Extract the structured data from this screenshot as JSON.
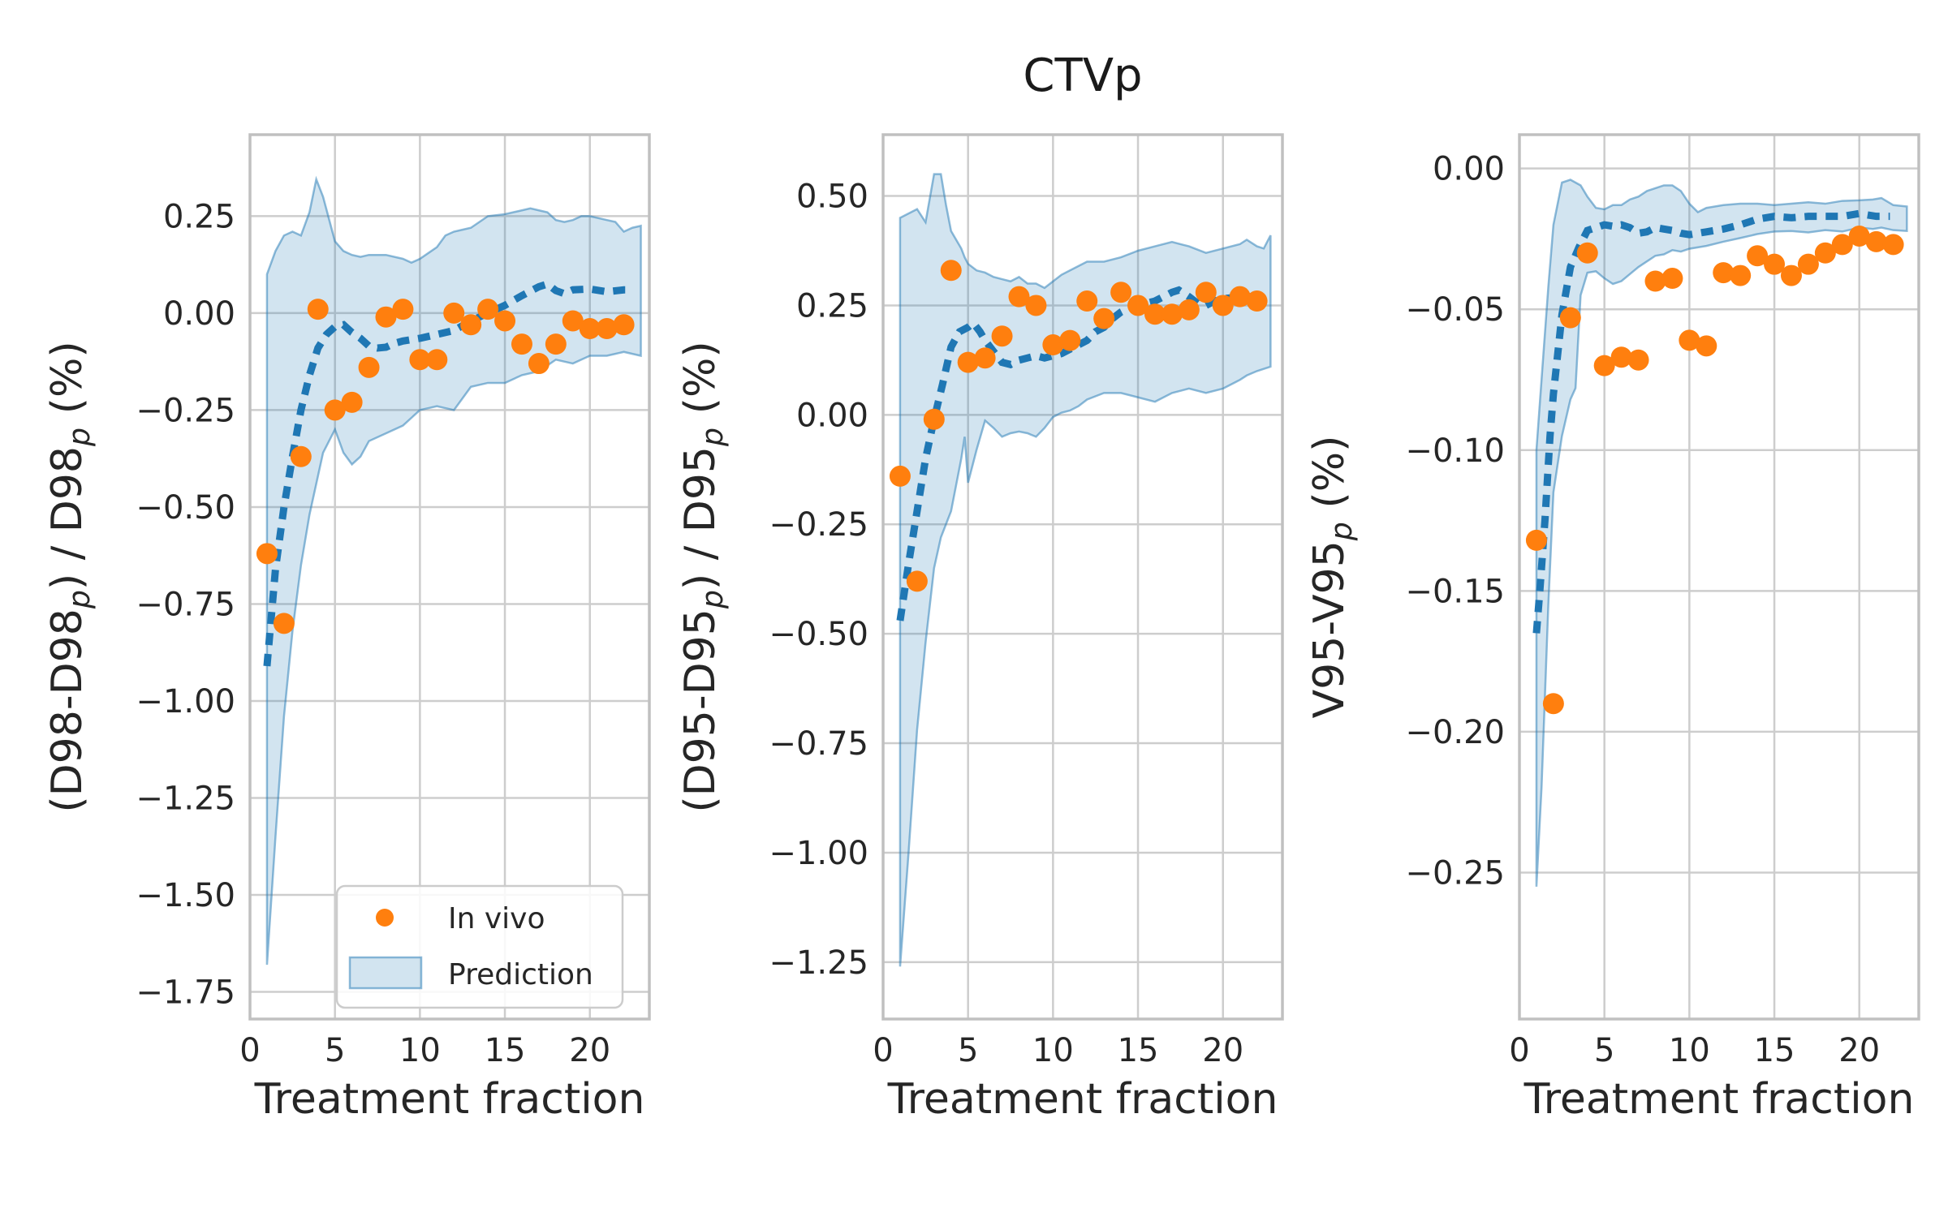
{
  "figure": {
    "title": "CTVp",
    "xlabel": "Treatment fraction",
    "legend": {
      "items": [
        {
          "label": "In vivo",
          "marker": "dot-icon"
        },
        {
          "label": "Prediction",
          "marker": "band-patch-icon"
        }
      ]
    },
    "colors": {
      "scatter_orange": "#ff7f0e",
      "prediction_blue": "#1f77b4",
      "band_fill": "rgba(31,119,180,0.20)",
      "band_edge": "rgba(31,119,180,0.50)",
      "grid_gray": "#cdcdcd",
      "spine_gray": "#c0c0c0",
      "text_color": "#262626"
    }
  },
  "chart_data": [
    {
      "type": "scatter",
      "name": "subplot-d98",
      "title": "",
      "xlabel": "Treatment fraction",
      "ylabel": "(D98-D98_p) / D98_p (%)",
      "xlim": [
        0,
        23.5
      ],
      "ylim": [
        -1.82,
        0.46
      ],
      "grid": true,
      "xticks": [
        {
          "v": 0,
          "label": "0"
        },
        {
          "v": 5,
          "label": "5"
        },
        {
          "v": 10,
          "label": "10"
        },
        {
          "v": 15,
          "label": "15"
        },
        {
          "v": 20,
          "label": "20"
        }
      ],
      "yticks": [
        {
          "v": 0.25,
          "label": "0.25"
        },
        {
          "v": 0,
          "label": "0.00"
        },
        {
          "v": -0.25,
          "label": "−0.25"
        },
        {
          "v": -0.5,
          "label": "−0.50"
        },
        {
          "v": -0.75,
          "label": "−0.75"
        },
        {
          "v": -1,
          "label": "−1.00"
        },
        {
          "v": -1.25,
          "label": "−1.25"
        },
        {
          "v": -1.5,
          "label": "−1.50"
        },
        {
          "v": -1.75,
          "label": "−1.75"
        }
      ],
      "scatter": {
        "name": "In vivo",
        "x": [
          1,
          2,
          3,
          4,
          5,
          6,
          7,
          8,
          9,
          10,
          11,
          12,
          13,
          14,
          15,
          16,
          17,
          18,
          19,
          20,
          21,
          22
        ],
        "y": [
          -0.62,
          -0.8,
          -0.37,
          0.01,
          -0.25,
          -0.23,
          -0.14,
          -0.01,
          0.01,
          -0.12,
          -0.12,
          0.0,
          -0.03,
          0.01,
          -0.02,
          -0.08,
          -0.13,
          -0.08,
          -0.02,
          -0.04,
          -0.04,
          -0.03
        ]
      },
      "mean": {
        "name": "Prediction mean",
        "x": [
          1,
          1.5,
          2,
          2.5,
          3,
          3.5,
          4,
          4.5,
          5,
          5.5,
          6,
          6.5,
          7,
          7.5,
          8,
          8.5,
          9,
          10,
          11,
          12,
          13,
          14,
          15,
          16,
          17,
          17.5,
          18,
          18.5,
          19,
          20,
          21,
          22,
          22.3
        ],
        "y": [
          -0.91,
          -0.66,
          -0.5,
          -0.37,
          -0.25,
          -0.16,
          -0.09,
          -0.055,
          -0.035,
          -0.03,
          -0.05,
          -0.065,
          -0.085,
          -0.09,
          -0.088,
          -0.078,
          -0.072,
          -0.065,
          -0.055,
          -0.045,
          -0.02,
          0.0,
          0.02,
          0.045,
          0.068,
          0.075,
          0.058,
          0.05,
          0.06,
          0.062,
          0.055,
          0.06,
          0.06
        ]
      },
      "band": {
        "name": "Prediction",
        "x": [
          1,
          1.5,
          2,
          2.5,
          3,
          3.5,
          3.9,
          4.3,
          5,
          5.5,
          6,
          6.5,
          7,
          8,
          9,
          9.5,
          10,
          10.5,
          11,
          11.5,
          12,
          12.5,
          13,
          14,
          15,
          16,
          16.5,
          17,
          17.5,
          18,
          18.5,
          19,
          19.5,
          20,
          20.5,
          21,
          21.5,
          22,
          22.5,
          23
        ],
        "upper": [
          0.1,
          0.16,
          0.2,
          0.21,
          0.2,
          0.26,
          0.345,
          0.3,
          0.185,
          0.16,
          0.15,
          0.145,
          0.15,
          0.15,
          0.14,
          0.13,
          0.14,
          0.155,
          0.17,
          0.2,
          0.21,
          0.215,
          0.22,
          0.25,
          0.255,
          0.265,
          0.27,
          0.265,
          0.26,
          0.24,
          0.235,
          0.24,
          0.25,
          0.25,
          0.245,
          0.24,
          0.235,
          0.21,
          0.22,
          0.225
        ],
        "lower": [
          -1.68,
          -1.35,
          -1.04,
          -0.82,
          -0.65,
          -0.52,
          -0.44,
          -0.36,
          -0.3,
          -0.36,
          -0.39,
          -0.37,
          -0.33,
          -0.31,
          -0.29,
          -0.27,
          -0.25,
          -0.245,
          -0.24,
          -0.245,
          -0.25,
          -0.22,
          -0.19,
          -0.18,
          -0.18,
          -0.16,
          -0.155,
          -0.15,
          -0.135,
          -0.12,
          -0.125,
          -0.13,
          -0.12,
          -0.11,
          -0.11,
          -0.11,
          -0.105,
          -0.1,
          -0.105,
          -0.11
        ]
      }
    },
    {
      "type": "scatter",
      "name": "subplot-d95",
      "title": "CTVp",
      "xlabel": "Treatment fraction",
      "ylabel": "(D95-D95_p) / D95_p (%)",
      "xlim": [
        0,
        23.5
      ],
      "ylim": [
        -1.38,
        0.64
      ],
      "grid": true,
      "xticks": [
        {
          "v": 0,
          "label": "0"
        },
        {
          "v": 5,
          "label": "5"
        },
        {
          "v": 10,
          "label": "10"
        },
        {
          "v": 15,
          "label": "15"
        },
        {
          "v": 20,
          "label": "20"
        }
      ],
      "yticks": [
        {
          "v": 0.5,
          "label": "0.50"
        },
        {
          "v": 0.25,
          "label": "0.25"
        },
        {
          "v": 0,
          "label": "0.00"
        },
        {
          "v": -0.25,
          "label": "−0.25"
        },
        {
          "v": -0.5,
          "label": "−0.50"
        },
        {
          "v": -0.75,
          "label": "−0.75"
        },
        {
          "v": -1,
          "label": "−1.00"
        },
        {
          "v": -1.25,
          "label": "−1.25"
        }
      ],
      "scatter": {
        "name": "In vivo",
        "x": [
          1,
          2,
          3,
          4,
          5,
          6,
          7,
          8,
          9,
          10,
          11,
          12,
          13,
          14,
          15,
          16,
          17,
          18,
          19,
          20,
          21,
          22
        ],
        "y": [
          -0.14,
          -0.38,
          -0.01,
          0.33,
          0.12,
          0.13,
          0.18,
          0.27,
          0.25,
          0.16,
          0.17,
          0.26,
          0.22,
          0.28,
          0.25,
          0.23,
          0.23,
          0.24,
          0.28,
          0.25,
          0.27,
          0.26
        ]
      },
      "mean": {
        "name": "Prediction mean",
        "x": [
          1,
          1.5,
          2,
          2.5,
          3,
          3.5,
          4,
          4.5,
          5,
          5.3,
          5.7,
          6,
          6.5,
          7,
          7.5,
          8,
          8.5,
          9,
          9.5,
          10,
          10.5,
          11,
          11.5,
          12,
          12.5,
          13,
          13.5,
          14,
          14.5,
          15,
          16,
          16.5,
          17,
          17.4,
          18,
          18.5,
          19,
          19.5,
          20,
          21,
          22,
          22.3
        ],
        "y": [
          -0.47,
          -0.34,
          -0.22,
          -0.1,
          -0.01,
          0.07,
          0.155,
          0.19,
          0.2,
          0.21,
          0.19,
          0.17,
          0.145,
          0.12,
          0.115,
          0.125,
          0.13,
          0.135,
          0.13,
          0.135,
          0.14,
          0.15,
          0.16,
          0.17,
          0.19,
          0.2,
          0.22,
          0.235,
          0.245,
          0.25,
          0.26,
          0.27,
          0.28,
          0.285,
          0.27,
          0.255,
          0.25,
          0.26,
          0.265,
          0.27,
          0.27,
          0.272
        ]
      },
      "band": {
        "name": "Prediction",
        "x": [
          1,
          1.5,
          2,
          2.5,
          3,
          3.4,
          3.7,
          4,
          4.3,
          4.6,
          4.8,
          5,
          5.5,
          6,
          6.5,
          7,
          7.5,
          8,
          8.5,
          9,
          9.5,
          10,
          10.5,
          11,
          11.5,
          12,
          13,
          14,
          15,
          16,
          17,
          17.5,
          18,
          19,
          20,
          21,
          21.4,
          22,
          22.4,
          22.8
        ],
        "upper": [
          0.45,
          0.46,
          0.47,
          0.44,
          0.55,
          0.55,
          0.48,
          0.42,
          0.4,
          0.38,
          0.36,
          0.345,
          0.33,
          0.325,
          0.315,
          0.31,
          0.305,
          0.315,
          0.3,
          0.3,
          0.29,
          0.305,
          0.32,
          0.33,
          0.34,
          0.35,
          0.35,
          0.36,
          0.375,
          0.385,
          0.395,
          0.39,
          0.385,
          0.37,
          0.38,
          0.39,
          0.4,
          0.385,
          0.38,
          0.41
        ],
        "lower": [
          -1.26,
          -1.0,
          -0.72,
          -0.52,
          -0.35,
          -0.28,
          -0.25,
          -0.22,
          -0.16,
          -0.1,
          -0.05,
          -0.155,
          -0.08,
          -0.013,
          -0.03,
          -0.05,
          -0.042,
          -0.038,
          -0.042,
          -0.05,
          -0.03,
          -0.005,
          0.005,
          0.01,
          0.02,
          0.035,
          0.05,
          0.05,
          0.04,
          0.03,
          0.05,
          0.055,
          0.06,
          0.05,
          0.06,
          0.08,
          0.09,
          0.1,
          0.105,
          0.11
        ]
      }
    },
    {
      "type": "scatter",
      "name": "subplot-v95",
      "title": "",
      "xlabel": "Treatment fraction",
      "ylabel": "V95-V95_p (%)",
      "xlim": [
        0,
        23.5
      ],
      "ylim": [
        -0.302,
        0.012
      ],
      "grid": true,
      "xticks": [
        {
          "v": 0,
          "label": "0"
        },
        {
          "v": 5,
          "label": "5"
        },
        {
          "v": 10,
          "label": "10"
        },
        {
          "v": 15,
          "label": "15"
        },
        {
          "v": 20,
          "label": "20"
        }
      ],
      "yticks": [
        {
          "v": 0,
          "label": "0.00"
        },
        {
          "v": -0.05,
          "label": "−0.05"
        },
        {
          "v": -0.1,
          "label": "−0.10"
        },
        {
          "v": -0.15,
          "label": "−0.15"
        },
        {
          "v": -0.2,
          "label": "−0.20"
        },
        {
          "v": -0.25,
          "label": "−0.25"
        }
      ],
      "scatter": {
        "name": "In vivo",
        "x": [
          1,
          2,
          3,
          4,
          5,
          6,
          7,
          8,
          9,
          10,
          11,
          12,
          13,
          14,
          15,
          16,
          17,
          18,
          19,
          20,
          21,
          22
        ],
        "y": [
          -0.132,
          -0.19,
          -0.053,
          -0.03,
          -0.07,
          -0.067,
          -0.068,
          -0.04,
          -0.039,
          -0.061,
          -0.063,
          -0.037,
          -0.038,
          -0.031,
          -0.034,
          -0.038,
          -0.034,
          -0.03,
          -0.027,
          -0.024,
          -0.026,
          -0.027
        ]
      },
      "mean": {
        "name": "Prediction mean",
        "x": [
          1,
          1.2,
          1.5,
          1.8,
          2,
          2.5,
          3,
          3.5,
          4,
          4.5,
          5,
          5.5,
          6,
          6.5,
          7,
          7.5,
          8,
          8.5,
          9,
          9.5,
          10,
          10.5,
          11,
          12,
          13,
          14,
          15,
          16,
          17,
          18,
          19,
          20,
          21,
          21.8
        ],
        "y": [
          -0.165,
          -0.15,
          -0.125,
          -0.095,
          -0.08,
          -0.052,
          -0.035,
          -0.028,
          -0.022,
          -0.021,
          -0.02,
          -0.0205,
          -0.02,
          -0.021,
          -0.023,
          -0.0225,
          -0.021,
          -0.0215,
          -0.022,
          -0.023,
          -0.0235,
          -0.023,
          -0.0225,
          -0.0215,
          -0.02,
          -0.018,
          -0.017,
          -0.0175,
          -0.017,
          -0.017,
          -0.017,
          -0.016,
          -0.017,
          -0.017
        ]
      },
      "band": {
        "name": "Prediction",
        "x": [
          1,
          1.3,
          1.7,
          2,
          2.5,
          3,
          3.3,
          3.6,
          4,
          4.5,
          5,
          5.5,
          6,
          6.5,
          7,
          7.5,
          8,
          8.5,
          9,
          9.5,
          10,
          10.5,
          11,
          12,
          13,
          14,
          15,
          16,
          17,
          18,
          19,
          20,
          20.8,
          21.3,
          22,
          22.8
        ],
        "upper": [
          -0.1,
          -0.075,
          -0.042,
          -0.02,
          -0.005,
          -0.004,
          -0.005,
          -0.006,
          -0.01,
          -0.014,
          -0.0145,
          -0.013,
          -0.013,
          -0.011,
          -0.01,
          -0.008,
          -0.007,
          -0.006,
          -0.006,
          -0.008,
          -0.0125,
          -0.0155,
          -0.014,
          -0.013,
          -0.0125,
          -0.0125,
          -0.013,
          -0.0125,
          -0.012,
          -0.0125,
          -0.0115,
          -0.0113,
          -0.011,
          -0.0105,
          -0.013,
          -0.0135
        ],
        "lower": [
          -0.255,
          -0.22,
          -0.155,
          -0.115,
          -0.095,
          -0.082,
          -0.078,
          -0.045,
          -0.037,
          -0.0365,
          -0.039,
          -0.041,
          -0.04,
          -0.0375,
          -0.035,
          -0.033,
          -0.031,
          -0.0305,
          -0.029,
          -0.0295,
          -0.0285,
          -0.028,
          -0.0275,
          -0.026,
          -0.0247,
          -0.0233,
          -0.0224,
          -0.0222,
          -0.0227,
          -0.0219,
          -0.0224,
          -0.021,
          -0.0215,
          -0.021,
          -0.0219,
          -0.0222
        ]
      }
    }
  ]
}
